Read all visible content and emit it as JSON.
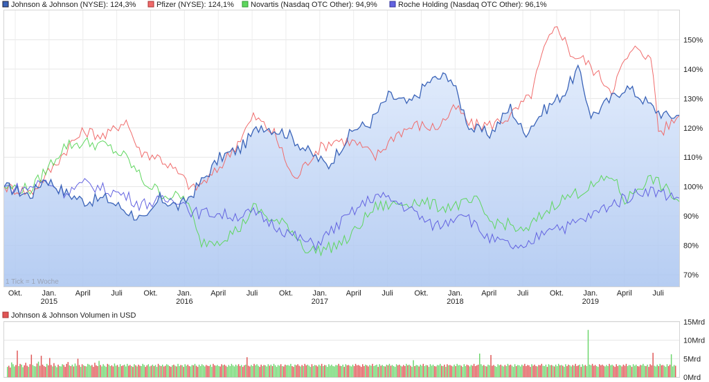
{
  "legend": [
    {
      "label": "Johnson & Johnson (NYSE): 124,3%",
      "color": "#3a63b8"
    },
    {
      "label": "Pfizer (NYSE): 124,1%",
      "color": "#f06b6b"
    },
    {
      "label": "Novartis (Nasdaq OTC Other): 94,9%",
      "color": "#5ed65e"
    },
    {
      "label": "Roche Holding (Nasdaq OTC Other): 96,1%",
      "color": "#6262e0"
    }
  ],
  "tick_note": "1 Tick = 1 Woche",
  "volume_legend": {
    "label": "Johnson & Johnson Volumen in USD",
    "color": "#e05555"
  },
  "chart_data": [
    {
      "type": "line",
      "title": "",
      "x_ticks": [
        {
          "label": "Okt.",
          "year": ""
        },
        {
          "label": "Jan.",
          "year": "2015"
        },
        {
          "label": "April",
          "year": ""
        },
        {
          "label": "Juli",
          "year": ""
        },
        {
          "label": "Okt.",
          "year": ""
        },
        {
          "label": "Jan.",
          "year": "2016"
        },
        {
          "label": "April",
          "year": ""
        },
        {
          "label": "Juli",
          "year": ""
        },
        {
          "label": "Okt.",
          "year": ""
        },
        {
          "label": "Jan.",
          "year": "2017"
        },
        {
          "label": "April",
          "year": ""
        },
        {
          "label": "Juli",
          "year": ""
        },
        {
          "label": "Okt.",
          "year": ""
        },
        {
          "label": "Jan.",
          "year": "2018"
        },
        {
          "label": "April",
          "year": ""
        },
        {
          "label": "Juli",
          "year": ""
        },
        {
          "label": "Okt.",
          "year": ""
        },
        {
          "label": "Jan.",
          "year": "2019"
        },
        {
          "label": "April",
          "year": ""
        },
        {
          "label": "Juli",
          "year": ""
        }
      ],
      "y_ticks": [
        "70%",
        "80%",
        "90%",
        "100%",
        "110%",
        "120%",
        "130%",
        "140%",
        "150%"
      ],
      "y_tick_values": [
        70,
        80,
        90,
        100,
        110,
        120,
        130,
        140,
        150
      ],
      "ylim": [
        66,
        160
      ],
      "series": [
        {
          "name": "Johnson & Johnson (NYSE)",
          "color": "#3a63b8",
          "anchors": [
            [
              0,
              100
            ],
            [
              4,
              97
            ],
            [
              6,
              103
            ],
            [
              9,
              98
            ],
            [
              12,
              95
            ],
            [
              15,
              96
            ],
            [
              18,
              92
            ],
            [
              21,
              88
            ],
            [
              23,
              96
            ],
            [
              26,
              93
            ],
            [
              28,
              98
            ],
            [
              32,
              110
            ],
            [
              35,
              113
            ],
            [
              38,
              121
            ],
            [
              42,
              118
            ],
            [
              45,
              112
            ],
            [
              48,
              107
            ],
            [
              50,
              114
            ],
            [
              52,
              120
            ],
            [
              54,
              121
            ],
            [
              57,
              131
            ],
            [
              60,
              128
            ],
            [
              63,
              136
            ],
            [
              66,
              138
            ],
            [
              69,
              120
            ],
            [
              72,
              118
            ],
            [
              75,
              127
            ],
            [
              77,
              118
            ],
            [
              80,
              126
            ],
            [
              83,
              132
            ],
            [
              85,
              140
            ],
            [
              87,
              124
            ],
            [
              89,
              128
            ],
            [
              92,
              134
            ],
            [
              94,
              131
            ],
            [
              96,
              127
            ],
            [
              98,
              124
            ],
            [
              100,
              124.3
            ]
          ]
        },
        {
          "name": "Pfizer (NYSE)",
          "color": "#f06b6b",
          "anchors": [
            [
              0,
              100
            ],
            [
              4,
              98
            ],
            [
              7,
              106
            ],
            [
              10,
              115
            ],
            [
              12,
              119
            ],
            [
              15,
              117
            ],
            [
              18,
              123
            ],
            [
              20,
              112
            ],
            [
              23,
              110
            ],
            [
              26,
              104
            ],
            [
              28,
              99
            ],
            [
              31,
              104
            ],
            [
              34,
              113
            ],
            [
              37,
              124
            ],
            [
              40,
              118
            ],
            [
              43,
              102
            ],
            [
              46,
              112
            ],
            [
              49,
              116
            ],
            [
              52,
              115
            ],
            [
              55,
              110
            ],
            [
              58,
              118
            ],
            [
              61,
              121
            ],
            [
              64,
              120
            ],
            [
              67,
              127
            ],
            [
              69,
              121
            ],
            [
              72,
              121
            ],
            [
              75,
              124
            ],
            [
              78,
              131
            ],
            [
              80,
              147
            ],
            [
              82,
              155
            ],
            [
              84,
              145
            ],
            [
              86,
              143
            ],
            [
              88,
              138
            ],
            [
              90,
              133
            ],
            [
              92,
              143
            ],
            [
              94,
              148
            ],
            [
              96,
              142
            ],
            [
              97,
              118
            ],
            [
              98,
              120
            ],
            [
              100,
              124.1
            ]
          ]
        },
        {
          "name": "Novartis (Nasdaq OTC Other)",
          "color": "#5ed65e",
          "anchors": [
            [
              0,
              100
            ],
            [
              4,
              99
            ],
            [
              7,
              108
            ],
            [
              9,
              114
            ],
            [
              12,
              115
            ],
            [
              15,
              114
            ],
            [
              18,
              110
            ],
            [
              21,
              101
            ],
            [
              24,
              97
            ],
            [
              27,
              96
            ],
            [
              29,
              81
            ],
            [
              32,
              82
            ],
            [
              35,
              86
            ],
            [
              37,
              93
            ],
            [
              40,
              88
            ],
            [
              42,
              87
            ],
            [
              45,
              78
            ],
            [
              48,
              79
            ],
            [
              51,
              82
            ],
            [
              53,
              88
            ],
            [
              55,
              93
            ],
            [
              58,
              94
            ],
            [
              61,
              95
            ],
            [
              63,
              94
            ],
            [
              65,
              93
            ],
            [
              68,
              94
            ],
            [
              70,
              95
            ],
            [
              72,
              88
            ],
            [
              75,
              87
            ],
            [
              77,
              84
            ],
            [
              79,
              89
            ],
            [
              82,
              95
            ],
            [
              84,
              97
            ],
            [
              86,
              99
            ],
            [
              88,
              101
            ],
            [
              90,
              104
            ],
            [
              92,
              95
            ],
            [
              94,
              100
            ],
            [
              96,
              103
            ],
            [
              98,
              99
            ],
            [
              100,
              94.9
            ]
          ]
        },
        {
          "name": "Roche Holding (Nasdaq OTC Other)",
          "color": "#6262e0",
          "anchors": [
            [
              0,
              100
            ],
            [
              3,
              99
            ],
            [
              6,
              102
            ],
            [
              9,
              98
            ],
            [
              12,
              101
            ],
            [
              15,
              99
            ],
            [
              18,
              97
            ],
            [
              20,
              94
            ],
            [
              23,
              95
            ],
            [
              26,
              96
            ],
            [
              28,
              91
            ],
            [
              31,
              91
            ],
            [
              34,
              90
            ],
            [
              37,
              91
            ],
            [
              40,
              87
            ],
            [
              43,
              83
            ],
            [
              46,
              80
            ],
            [
              49,
              86
            ],
            [
              52,
              92
            ],
            [
              55,
              97
            ],
            [
              58,
              95
            ],
            [
              61,
              91
            ],
            [
              63,
              87
            ],
            [
              65,
              87
            ],
            [
              68,
              92
            ],
            [
              70,
              86
            ],
            [
              72,
              82
            ],
            [
              75,
              80
            ],
            [
              77,
              78
            ],
            [
              79,
              83
            ],
            [
              81,
              87
            ],
            [
              83,
              86
            ],
            [
              85,
              88
            ],
            [
              87,
              90
            ],
            [
              89,
              93
            ],
            [
              91,
              95
            ],
            [
              93,
              97
            ],
            [
              95,
              99
            ],
            [
              97,
              98
            ],
            [
              100,
              96.1
            ]
          ]
        }
      ]
    },
    {
      "type": "bar",
      "title": "Johnson & Johnson Volumen in USD",
      "y_ticks": [
        "0Mrd",
        "5Mrd",
        "10Mrd",
        "15Mrd"
      ],
      "y_tick_values": [
        0,
        5,
        10,
        15
      ],
      "ylim": [
        0,
        15
      ],
      "colors": {
        "up": "#6cd66c",
        "down": "#e05555"
      },
      "values": [
        2.8,
        3.1,
        2.6,
        4.0,
        3.5,
        2.9,
        3.3,
        7.2,
        3.0,
        3.6,
        3.4,
        2.7,
        3.2,
        3.9,
        3.1,
        2.8,
        3.5,
        6.1,
        3.3,
        3.0,
        2.9,
        3.7,
        4.2,
        3.1,
        5.8,
        3.4,
        3.0,
        2.8,
        3.6,
        3.2,
        5.2,
        3.3,
        2.9,
        3.8,
        3.1,
        2.7,
        3.4,
        3.0,
        2.9,
        3.5,
        3.3,
        2.8,
        3.6,
        4.1,
        3.2,
        3.0,
        3.4,
        2.9,
        3.7,
        3.1,
        5.0,
        3.3,
        2.8,
        3.5,
        3.2,
        3.0,
        2.9,
        3.6,
        3.4,
        3.1,
        3.3,
        2.8,
        3.9,
        3.2,
        3.0,
        4.4,
        3.3,
        2.9,
        3.5,
        3.1,
        2.8,
        3.6,
        3.4,
        3.0,
        3.2,
        2.9,
        3.7,
        3.1,
        3.3,
        2.8,
        3.5,
        3.0,
        3.2,
        3.4,
        2.9,
        3.6,
        3.1,
        3.3,
        3.0,
        2.8,
        3.5,
        3.2,
        2.9,
        3.4,
        3.1,
        3.0,
        3.6,
        3.3,
        2.8,
        3.2,
        3.5,
        2.9,
        3.1,
        3.4,
        3.0,
        3.3,
        2.8,
        3.6,
        3.2,
        3.0,
        3.4,
        2.9,
        3.1,
        3.5,
        3.3,
        3.0,
        2.8,
        3.2,
        3.4,
        3.1,
        2.9,
        3.6,
        3.0,
        3.3,
        3.2,
        2.8,
        3.5,
        3.1,
        3.4,
        3.0,
        2.9,
        3.3,
        3.2,
        3.6,
        3.1,
        2.8,
        3.4,
        3.0,
        3.5,
        3.2,
        2.9,
        3.3,
        3.1,
        3.0,
        3.4,
        2.8,
        3.6,
        3.2,
        3.1,
        3.3,
        3.0,
        2.9,
        3.5,
        3.2,
        3.4,
        3.1,
        2.8,
        3.3,
        3.0,
        3.6,
        3.2,
        2.9,
        3.4,
        3.1,
        3.5,
        3.0,
        3.3,
        2.8,
        3.2,
        3.4,
        5.4,
        3.1,
        2.9,
        3.3,
        3.0,
        3.6,
        3.2,
        3.5,
        3.1,
        2.8,
        3.4,
        3.0,
        3.3,
        3.2,
        2.9,
        3.5,
        3.1,
        3.4,
        3.0,
        3.6,
        3.2,
        2.8,
        3.3,
        3.1,
        3.5,
        3.0,
        2.9,
        3.4,
        3.2,
        3.3,
        3.1,
        3.6,
        3.0,
        2.8,
        3.4,
        3.2,
        3.5,
        3.1,
        2.9,
        3.3,
        3.0,
        3.6,
        3.2,
        3.4,
        3.1,
        2.8,
        3.5,
        3.0,
        3.3,
        3.2,
        2.9,
        3.4,
        3.1,
        3.6,
        3.0,
        3.3,
        3.2,
        2.8,
        3.5,
        3.1,
        3.4,
        3.0,
        2.9,
        3.3,
        3.2,
        3.6,
        3.1,
        3.0,
        3.4,
        2.8,
        3.5,
        3.2,
        3.3,
        3.1,
        2.9,
        3.4,
        3.0,
        3.6,
        3.2,
        3.3,
        3.1,
        2.8,
        3.5,
        3.0,
        3.4,
        3.2,
        2.9,
        3.3,
        3.1,
        3.6,
        3.0,
        3.2,
        3.4,
        2.8,
        3.5,
        3.1,
        3.3,
        3.0,
        2.9,
        3.4,
        3.2,
        3.6,
        3.1,
        3.3,
        3.0,
        2.8,
        3.5,
        3.2,
        3.4,
        3.1,
        2.9,
        3.3,
        3.0,
        3.6,
        3.2,
        3.4,
        3.1,
        2.8,
        4.6,
        3.0,
        3.3,
        3.2,
        2.9,
        3.4,
        3.1,
        3.6,
        3.0,
        3.3,
        3.2,
        2.8,
        3.5,
        3.1,
        3.4,
        3.0,
        2.9,
        3.3,
        3.2,
        3.6,
        3.1,
        3.0,
        3.4,
        2.8,
        3.5,
        3.2,
        3.3,
        3.1,
        2.9,
        3.4,
        3.0,
        3.6,
        3.2,
        3.3,
        3.1,
        2.8,
        3.5,
        3.0,
        3.4,
        3.2,
        2.9,
        3.3,
        3.1,
        3.6,
        3.0,
        3.2,
        3.4,
        6.4,
        3.5,
        3.1,
        3.3,
        3.0,
        2.9,
        3.4,
        3.2,
        6.0,
        3.1,
        3.3,
        3.0,
        2.8,
        3.5,
        3.2,
        3.4,
        3.1,
        2.9,
        3.3,
        3.0,
        3.6,
        3.2,
        3.4,
        3.1,
        2.8,
        3.5,
        3.0,
        3.3,
        3.2,
        2.9,
        3.4,
        3.1,
        3.6,
        3.0,
        3.3,
        3.2,
        2.8,
        3.5,
        3.1,
        3.4,
        3.0,
        2.9,
        3.3,
        3.2,
        3.6,
        3.1,
        3.0,
        3.4,
        2.8,
        3.5,
        3.2,
        3.3,
        3.1,
        2.9,
        3.4,
        3.0,
        3.6,
        3.2,
        3.3,
        3.1,
        2.8,
        3.5,
        3.0,
        3.4,
        3.2,
        2.9,
        3.3,
        3.1,
        3.6,
        3.0,
        3.2,
        3.4,
        2.8,
        3.5,
        3.1,
        3.3,
        3.0,
        12.8,
        3.4,
        3.2,
        3.6,
        3.1,
        3.3,
        3.0,
        2.8,
        3.5,
        3.2,
        3.4,
        3.1,
        2.9,
        3.3,
        3.0,
        3.6,
        3.2,
        3.4,
        3.1,
        2.8,
        3.5,
        3.0,
        3.3,
        3.2,
        2.9,
        3.4,
        3.1,
        3.6,
        3.0,
        3.3,
        3.2,
        2.8,
        3.5,
        3.1,
        3.4,
        3.0,
        2.9,
        3.3,
        3.2,
        3.6,
        3.1,
        3.0,
        3.4,
        2.8,
        3.5,
        3.2,
        6.6,
        3.1,
        2.9,
        3.4,
        3.0,
        3.6,
        3.2,
        3.3,
        3.1,
        2.8,
        3.5,
        3.0,
        3.4,
        6.2,
        2.9,
        3.3,
        3.1
      ]
    }
  ]
}
